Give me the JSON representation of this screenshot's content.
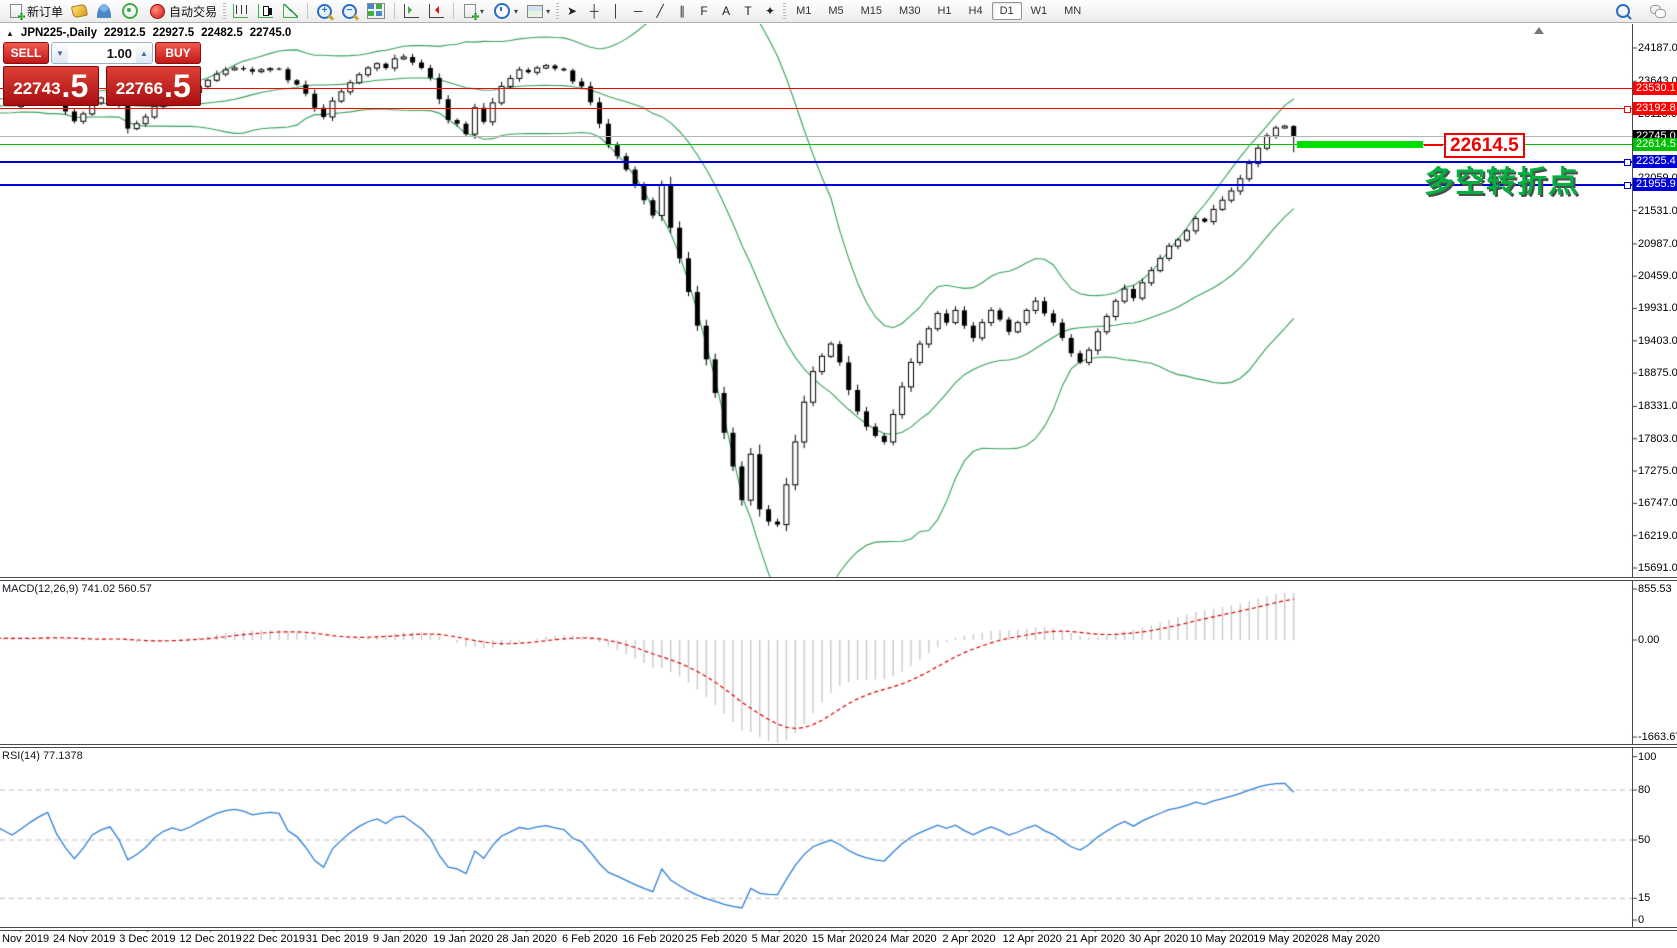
{
  "toolbar": {
    "new_order_label": "新订单",
    "auto_trading_label": "自动交易",
    "timeframes": [
      "M1",
      "M5",
      "M15",
      "M30",
      "H1",
      "H4",
      "D1",
      "W1",
      "MN"
    ],
    "active_timeframe": "D1",
    "tool_glyphs": [
      {
        "name": "cursor",
        "g": "➤"
      },
      {
        "name": "crosshair",
        "g": "┼"
      },
      {
        "name": "vertical-line",
        "g": "│"
      },
      {
        "name": "horizontal-line",
        "g": "─"
      },
      {
        "name": "trendline",
        "g": "╱"
      },
      {
        "name": "equidistant-channel",
        "g": "∥"
      },
      {
        "name": "fibonacci",
        "g": "F"
      },
      {
        "name": "text",
        "g": "A"
      },
      {
        "name": "text-label",
        "g": "T"
      },
      {
        "name": "arrows",
        "g": "✦"
      }
    ]
  },
  "quote_bar": {
    "symbol_period": "JPN225-,Daily",
    "open": "22912.5",
    "high": "22927.5",
    "low": "22482.5",
    "close": "22745.0"
  },
  "trade_panel": {
    "sell_label": "SELL",
    "buy_label": "BUY",
    "volume": "1.00",
    "sell_price": "22743",
    "sell_price_frac": ".5",
    "buy_price": "22766",
    "buy_price_frac": ".5"
  },
  "annotations": {
    "price_box": "22614.5",
    "turning_point_text": "多空转折点"
  },
  "indicators": {
    "macd_title": "MACD(12,26,9) 741.02 560.57",
    "rsi_title": "RSI(14) 77.1378"
  },
  "price_lines": [
    {
      "label": "23530.1",
      "price": 23530.1,
      "color": "#ff0000",
      "width": 1,
      "handle": false,
      "bg": "#ff0000"
    },
    {
      "label": "23192.8",
      "price": 23192.8,
      "color": "#ff0000",
      "width": 1,
      "handle": true,
      "bg": "#ff0000"
    },
    {
      "label": "22745.0",
      "price": 22745.0,
      "color": "#b4b4b4",
      "width": 1,
      "handle": false,
      "bg": "#000000"
    },
    {
      "label": "22614.5",
      "price": 22614.5,
      "color": "#00c000",
      "width": 1,
      "handle": false,
      "bg": "#00c000"
    },
    {
      "label": "22325.4",
      "price": 22325.4,
      "color": "#0000d8",
      "width": 2,
      "handle": true,
      "bg": "#0000d8"
    },
    {
      "label": "21955.9",
      "price": 21955.9,
      "color": "#0000d8",
      "width": 2,
      "handle": true,
      "bg": "#0000d8"
    }
  ],
  "axis": {
    "main_ticks": [
      "24187.0",
      "23643.0",
      "23115.0",
      "22587.0",
      "22059.0",
      "21531.0",
      "20987.0",
      "20459.0",
      "19931.0",
      "19403.0",
      "18875.0",
      "18331.0",
      "17803.0",
      "17275.0",
      "16747.0",
      "16219.0",
      "15691.0"
    ],
    "macd_ticks": [
      "855.53",
      "0.00",
      "-1663.67"
    ],
    "rsi_ticks": [
      "100",
      "80",
      "50",
      "15",
      "0"
    ],
    "dates": [
      "4 Nov 2019",
      "24 Nov 2019",
      "3 Dec 2019",
      "12 Dec 2019",
      "22 Dec 2019",
      "31 Dec 2019",
      "9 Jan 2020",
      "19 Jan 2020",
      "28 Jan 2020",
      "6 Feb 2020",
      "16 Feb 2020",
      "25 Feb 2020",
      "5 Mar 2020",
      "15 Mar 2020",
      "24 Mar 2020",
      "2 Apr 2020",
      "12 Apr 2020",
      "21 Apr 2020",
      "30 Apr 2020",
      "10 May 2020",
      "19 May 2020",
      "28 May 2020"
    ]
  },
  "chart_data": {
    "type": "candlestick",
    "symbol": "JPN225-",
    "period": "Daily",
    "current_ohlc": {
      "open": 22912.5,
      "high": 22927.5,
      "low": 22482.5,
      "close": 22745.0
    },
    "bid": 22743.5,
    "ask": 22766.5,
    "ylim": [
      15691.0,
      24187.0
    ],
    "levels": {
      "resistance": [
        23530.1,
        23192.8
      ],
      "pivot_green": 22614.5,
      "support_blue": [
        22325.4,
        21955.9
      ],
      "last_price": 22745.0
    },
    "overlays": {
      "bollinger_period": 20,
      "bollinger_dev": 2
    },
    "macd": {
      "fast": 12,
      "slow": 26,
      "signal": 9,
      "main_value": 741.02,
      "signal_value": 560.57,
      "range": [
        -1663.67,
        855.53
      ]
    },
    "rsi": {
      "period": 14,
      "value": 77.1378,
      "levels": [
        80,
        50,
        15
      ],
      "range": [
        0,
        100
      ]
    },
    "session_low": 16360,
    "pre_closes": [
      23150,
      23220,
      23180,
      23260,
      23300,
      23240,
      23180,
      23120,
      23200,
      23280,
      23240,
      23300,
      23350,
      23300,
      23250,
      23200,
      23260,
      23310,
      23270,
      23230
    ],
    "closes": [
      23290,
      23360,
      23430,
      23490,
      23310,
      23150,
      22990,
      23110,
      23290,
      23370,
      23420,
      23250,
      22870,
      22950,
      23060,
      23230,
      23360,
      23430,
      23390,
      23460,
      23560,
      23660,
      23760,
      23830,
      23860,
      23840,
      23800,
      23830,
      23850,
      23840,
      23660,
      23590,
      23440,
      23210,
      23060,
      23320,
      23470,
      23620,
      23750,
      23860,
      23930,
      23860,
      24010,
      24040,
      23950,
      23860,
      23700,
      23350,
      23010,
      22950,
      22780,
      23210,
      22980,
      23290,
      23560,
      23690,
      23830,
      23790,
      23860,
      23900,
      23850,
      23820,
      23640,
      23560,
      23300,
      22950,
      22600,
      22420,
      22200,
      21950,
      21700,
      21450,
      21950,
      21250,
      20750,
      20200,
      19650,
      19100,
      18550,
      17900,
      17350,
      16800,
      17550,
      16650,
      16450,
      16400,
      17050,
      17750,
      18400,
      18900,
      19150,
      19350,
      19050,
      18600,
      18250,
      18000,
      17850,
      17750,
      18200,
      18650,
      19050,
      19350,
      19600,
      19850,
      19700,
      19900,
      19650,
      19450,
      19700,
      19900,
      19750,
      19550,
      19700,
      19900,
      20050,
      19850,
      19700,
      19450,
      19200,
      19050,
      19250,
      19550,
      19800,
      20050,
      20250,
      20100,
      20350,
      20550,
      20750,
      20950,
      21050,
      21200,
      21400,
      21350,
      21550,
      21700,
      21850,
      22050,
      22300,
      22550,
      22750,
      22880,
      22910,
      22745
    ]
  }
}
